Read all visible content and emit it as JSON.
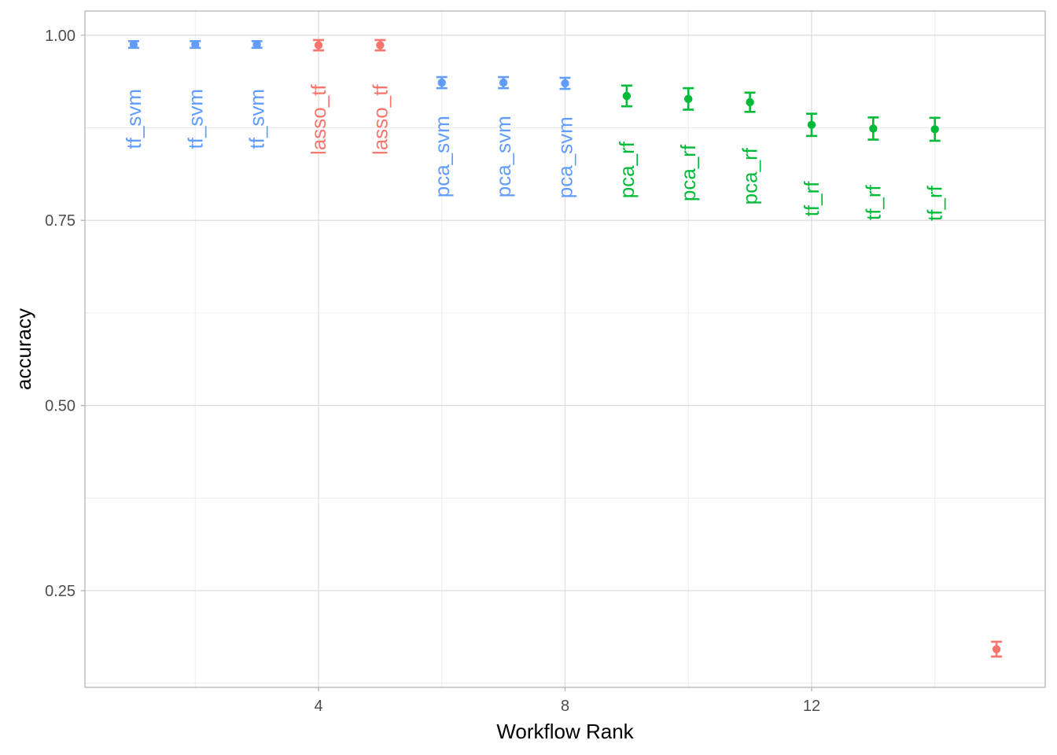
{
  "chart_data": {
    "type": "scatter",
    "title": "",
    "xlabel": "Workflow Rank",
    "ylabel": "accuracy",
    "xlim": [
      0.21,
      15.79
    ],
    "ylim": [
      0.1194,
      1.0327
    ],
    "x_ticks": [
      4,
      8,
      12
    ],
    "x_tick_labels": [
      "4",
      "8",
      "12"
    ],
    "y_ticks": [
      0.25,
      0.5,
      0.75,
      1.0
    ],
    "y_tick_labels": [
      "0.25",
      "0.50",
      "0.75",
      "1.00"
    ],
    "grid": true,
    "legend": "none",
    "colors": {
      "lasso": "#F8766D",
      "rf": "#00BA38",
      "svm": "#619CFF"
    },
    "points": [
      {
        "rank": 1,
        "accuracy": 0.9875,
        "lower": 0.983,
        "upper": 0.992,
        "label": "tf_svm",
        "label_y": 0.887,
        "group": "svm"
      },
      {
        "rank": 2,
        "accuracy": 0.9875,
        "lower": 0.983,
        "upper": 0.992,
        "label": "tf_svm",
        "label_y": 0.887,
        "group": "svm"
      },
      {
        "rank": 3,
        "accuracy": 0.9875,
        "lower": 0.983,
        "upper": 0.992,
        "label": "tf_svm",
        "label_y": 0.887,
        "group": "svm"
      },
      {
        "rank": 4,
        "accuracy": 0.9865,
        "lower": 0.9795,
        "upper": 0.9935,
        "label": "lasso_tf",
        "label_y": 0.886,
        "group": "lasso"
      },
      {
        "rank": 5,
        "accuracy": 0.9865,
        "lower": 0.9795,
        "upper": 0.9935,
        "label": "lasso_tf",
        "label_y": 0.886,
        "group": "lasso"
      },
      {
        "rank": 6,
        "accuracy": 0.936,
        "lower": 0.9285,
        "upper": 0.9435,
        "label": "pca_svm",
        "label_y": 0.836,
        "group": "svm"
      },
      {
        "rank": 7,
        "accuracy": 0.936,
        "lower": 0.9285,
        "upper": 0.9435,
        "label": "pca_svm",
        "label_y": 0.836,
        "group": "svm"
      },
      {
        "rank": 8,
        "accuracy": 0.935,
        "lower": 0.9275,
        "upper": 0.9425,
        "label": "pca_svm",
        "label_y": 0.835,
        "group": "svm"
      },
      {
        "rank": 9,
        "accuracy": 0.918,
        "lower": 0.904,
        "upper": 0.932,
        "label": "pca_rf",
        "label_y": 0.818,
        "group": "rf"
      },
      {
        "rank": 10,
        "accuracy": 0.914,
        "lower": 0.8995,
        "upper": 0.9285,
        "label": "pca_rf",
        "label_y": 0.814,
        "group": "rf"
      },
      {
        "rank": 11,
        "accuracy": 0.9095,
        "lower": 0.8965,
        "upper": 0.9225,
        "label": "pca_rf",
        "label_y": 0.8095,
        "group": "rf"
      },
      {
        "rank": 12,
        "accuracy": 0.879,
        "lower": 0.864,
        "upper": 0.894,
        "label": "tf_rf",
        "label_y": 0.779,
        "group": "rf"
      },
      {
        "rank": 13,
        "accuracy": 0.874,
        "lower": 0.859,
        "upper": 0.889,
        "label": "tf_rf",
        "label_y": 0.774,
        "group": "rf"
      },
      {
        "rank": 14,
        "accuracy": 0.873,
        "lower": 0.8575,
        "upper": 0.8885,
        "label": "tf_rf",
        "label_y": 0.773,
        "group": "rf"
      },
      {
        "rank": 15,
        "accuracy": 0.171,
        "lower": 0.161,
        "upper": 0.181,
        "label": "",
        "label_y": 0.171,
        "group": "lasso"
      }
    ]
  }
}
